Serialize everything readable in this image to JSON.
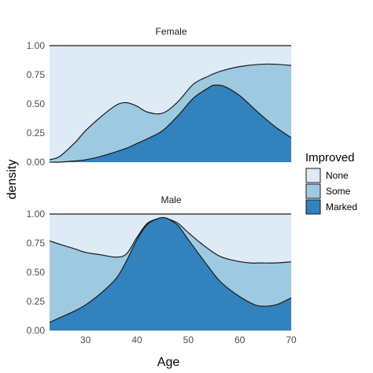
{
  "chart_data": {
    "type": "area",
    "subtype": "stacked-conditional-density",
    "xlabel": "Age",
    "ylabel": "density",
    "xlim": [
      23,
      70
    ],
    "ylim": [
      0,
      1
    ],
    "x_ticks": [
      "30",
      "40",
      "50",
      "60",
      "70"
    ],
    "y_ticks": [
      "0.00",
      "0.25",
      "0.50",
      "0.75",
      "1.00"
    ],
    "grid": true,
    "legend": {
      "title": "Improved",
      "position": "right",
      "entries": [
        "None",
        "Some",
        "Marked"
      ]
    },
    "colors": {
      "None": "#deebf7",
      "Some": "#9ecae1",
      "Marked": "#3182bd",
      "outline": "#1a1a1a"
    },
    "panels": [
      {
        "label": "Female",
        "x": [
          23,
          25,
          28,
          30,
          33,
          36,
          38,
          40,
          42,
          45,
          48,
          51,
          54,
          55,
          57,
          60,
          64,
          67,
          70
        ],
        "series": [
          {
            "name": "None",
            "values": [
              1,
              1,
              1,
              1,
              1,
              1,
              1,
              1,
              1,
              1,
              1,
              1,
              1,
              1,
              1,
              1,
              1,
              1,
              1
            ]
          },
          {
            "name": "Some",
            "values": [
              0.02,
              0.05,
              0.17,
              0.27,
              0.39,
              0.49,
              0.51,
              0.48,
              0.43,
              0.42,
              0.52,
              0.67,
              0.74,
              0.76,
              0.79,
              0.82,
              0.84,
              0.84,
              0.83
            ]
          },
          {
            "name": "Marked",
            "values": [
              0.0,
              0.0,
              0.01,
              0.02,
              0.05,
              0.09,
              0.12,
              0.16,
              0.2,
              0.27,
              0.4,
              0.55,
              0.64,
              0.66,
              0.65,
              0.57,
              0.41,
              0.3,
              0.21
            ]
          }
        ]
      },
      {
        "label": "Male",
        "x": [
          23,
          25,
          28,
          30,
          33,
          36,
          38,
          40,
          42,
          44,
          45,
          46,
          48,
          50,
          53,
          56,
          59,
          62,
          64,
          67,
          70
        ],
        "series": [
          {
            "name": "None",
            "values": [
              1,
              1,
              1,
              1,
              1,
              1,
              1,
              1,
              1,
              1,
              1,
              1,
              1,
              1,
              1,
              1,
              1,
              1,
              1,
              1,
              1
            ]
          },
          {
            "name": "Some",
            "values": [
              0.77,
              0.74,
              0.7,
              0.67,
              0.65,
              0.63,
              0.66,
              0.8,
              0.92,
              0.96,
              0.97,
              0.96,
              0.92,
              0.84,
              0.73,
              0.64,
              0.6,
              0.58,
              0.58,
              0.58,
              0.59
            ]
          },
          {
            "name": "Marked",
            "values": [
              0.07,
              0.11,
              0.17,
              0.22,
              0.32,
              0.45,
              0.6,
              0.78,
              0.91,
              0.96,
              0.97,
              0.96,
              0.9,
              0.78,
              0.6,
              0.43,
              0.32,
              0.24,
              0.21,
              0.22,
              0.28
            ]
          }
        ]
      }
    ]
  }
}
